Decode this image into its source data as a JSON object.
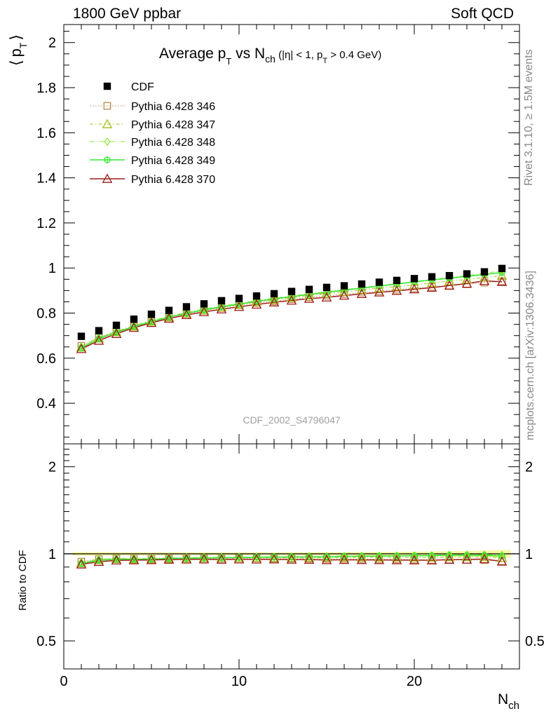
{
  "header": {
    "left": "1800 GeV ppbar",
    "right": "Soft QCD"
  },
  "side_labels": {
    "rivet": "Rivet 3.1.10, ≥ 1.5M events",
    "mcplots": "mcplots.cern.ch [arXiv:1306.3436]"
  },
  "chart_data": {
    "type": "scatter",
    "title": "Average p_T vs N_ch (|η| < 1, p_T > 0.4 GeV)",
    "title_parts": {
      "main": "Average p",
      "sub1": "T",
      "vs": " vs N",
      "sub2": "ch",
      "cond_a": " (|η| < 1, p",
      "cond_sub": "T",
      "cond_b": " > 0.4 GeV)"
    },
    "watermark": "CDF_2002_S4796047",
    "ylabel": "⟨ p_T ⟩",
    "ylabel_parts": {
      "open": "⟨",
      "p": "p",
      "sub": "T",
      "close": "⟩"
    },
    "xlabel": "N_ch",
    "xlabel_parts": {
      "main": "N",
      "sub": "ch"
    },
    "ratio_ylabel": "Ratio to CDF",
    "xlim": [
      0,
      26
    ],
    "ylim": [
      0.22,
      2.08
    ],
    "ratio_ylim": [
      0.4,
      2.4
    ],
    "x_ticks": [
      0,
      10,
      20
    ],
    "y_ticks": [
      0.4,
      0.6,
      0.8,
      1,
      1.2,
      1.4,
      1.6,
      1.8,
      2
    ],
    "ratio_ticks": [
      0.5,
      1,
      2
    ],
    "x": [
      1,
      2,
      3,
      4,
      5,
      6,
      7,
      8,
      9,
      10,
      11,
      12,
      13,
      14,
      15,
      16,
      17,
      18,
      19,
      20,
      21,
      22,
      23,
      24,
      25
    ],
    "data": {
      "name": "CDF",
      "values": [
        0.697,
        0.722,
        0.746,
        0.773,
        0.795,
        0.812,
        0.828,
        0.841,
        0.855,
        0.865,
        0.876,
        0.886,
        0.896,
        0.905,
        0.914,
        0.921,
        0.929,
        0.937,
        0.945,
        0.953,
        0.961,
        0.966,
        0.974,
        0.983,
        0.998
      ],
      "band": [
        0.01,
        0.01,
        0.01,
        0.01,
        0.01,
        0.01,
        0.01,
        0.01,
        0.01,
        0.01,
        0.01,
        0.01,
        0.011,
        0.011,
        0.012,
        0.012,
        0.013,
        0.014,
        0.015,
        0.016,
        0.018,
        0.02,
        0.022,
        0.025,
        0.03
      ]
    },
    "series": [
      {
        "name": "Pythia 6.428 346",
        "color": "#b98a4e",
        "marker": "square",
        "dash": "1.5,2.5",
        "width": 1,
        "values": [
          0.655,
          0.692,
          0.718,
          0.742,
          0.763,
          0.782,
          0.797,
          0.811,
          0.823,
          0.835,
          0.845,
          0.853,
          0.862,
          0.87,
          0.877,
          0.884,
          0.891,
          0.897,
          0.904,
          0.91,
          0.916,
          0.922,
          0.928,
          0.935,
          0.941
        ]
      },
      {
        "name": "Pythia 6.428 347",
        "color": "#a6c21a",
        "marker": "triangle",
        "dash": "5,3,1.5,3",
        "width": 1,
        "values": [
          0.648,
          0.688,
          0.716,
          0.741,
          0.763,
          0.782,
          0.799,
          0.813,
          0.826,
          0.838,
          0.849,
          0.859,
          0.869,
          0.878,
          0.887,
          0.895,
          0.903,
          0.911,
          0.918,
          0.926,
          0.934,
          0.942,
          0.95,
          0.958,
          0.966
        ]
      },
      {
        "name": "Pythia 6.428 348",
        "color": "#8ee33a",
        "marker": "diamond",
        "dash": "7,3,1.5,3",
        "width": 1,
        "values": [
          0.652,
          0.692,
          0.72,
          0.745,
          0.767,
          0.786,
          0.803,
          0.818,
          0.831,
          0.843,
          0.855,
          0.866,
          0.876,
          0.886,
          0.895,
          0.904,
          0.913,
          0.922,
          0.931,
          0.94,
          0.949,
          0.958,
          0.967,
          0.977,
          0.987
        ]
      },
      {
        "name": "Pythia 6.428 349",
        "color": "#2ee82e",
        "marker": "circle",
        "dash": "",
        "width": 1.5,
        "values": [
          0.645,
          0.686,
          0.714,
          0.74,
          0.762,
          0.782,
          0.799,
          0.814,
          0.828,
          0.84,
          0.852,
          0.863,
          0.873,
          0.883,
          0.892,
          0.902,
          0.911,
          0.92,
          0.929,
          0.938,
          0.947,
          0.955,
          0.963,
          0.971,
          0.98
        ]
      },
      {
        "name": "Pythia 6.428 370",
        "color": "#9e1a1a",
        "marker": "triangle",
        "dash": "",
        "width": 1.5,
        "values": [
          0.641,
          0.678,
          0.708,
          0.735,
          0.757,
          0.776,
          0.792,
          0.805,
          0.817,
          0.828,
          0.838,
          0.848,
          0.856,
          0.864,
          0.87,
          0.878,
          0.885,
          0.892,
          0.899,
          0.906,
          0.913,
          0.922,
          0.931,
          0.943,
          0.939
        ]
      }
    ]
  }
}
